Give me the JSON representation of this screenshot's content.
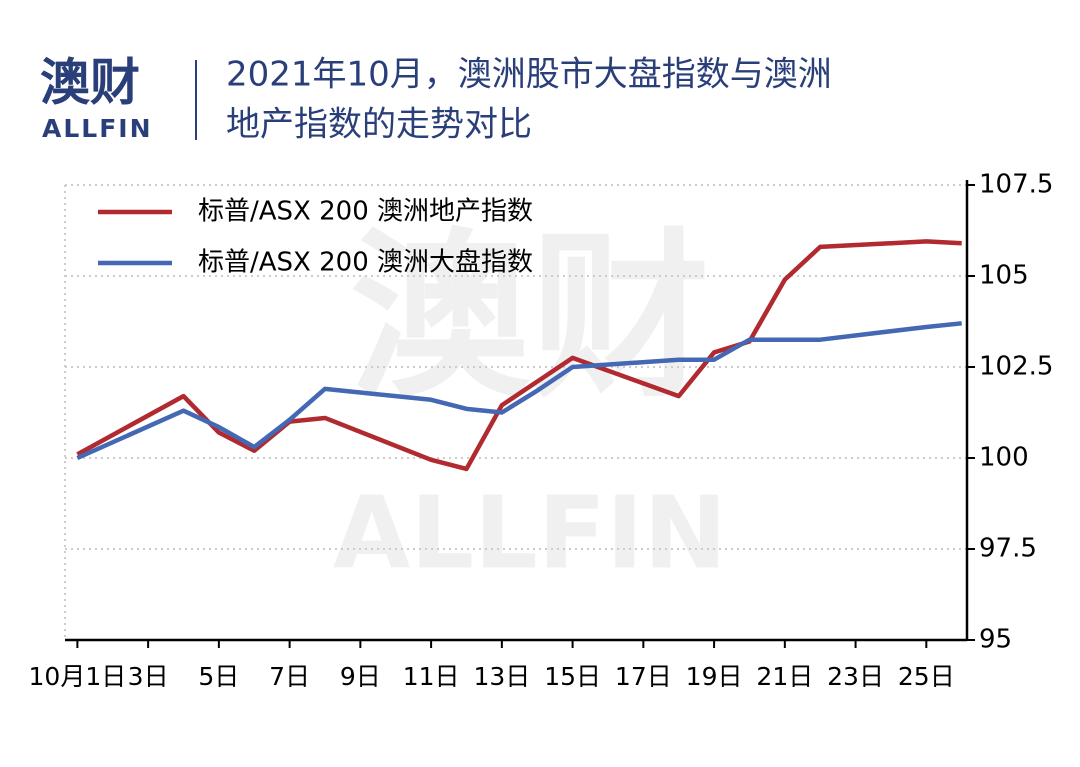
{
  "header": {
    "logo": "澳财",
    "logo_sub": "ALLFIN"
  },
  "chart_data": {
    "type": "line",
    "title": [
      "2021年10月，澳洲股市大盘指数与澳洲",
      "地产指数的走势对比"
    ],
    "watermark": [
      "澳财",
      "ALLFIN"
    ],
    "x": [
      1,
      4,
      5,
      6,
      7,
      8,
      11,
      12,
      13,
      14,
      15,
      18,
      19,
      20,
      21,
      22,
      25,
      26
    ],
    "xlim": [
      0.65,
      26.15
    ],
    "xticks": [
      {
        "value": 1,
        "label": "10月1日"
      },
      {
        "value": 3,
        "label": "3日"
      },
      {
        "value": 5,
        "label": "5日"
      },
      {
        "value": 7,
        "label": "7日"
      },
      {
        "value": 9,
        "label": "9日"
      },
      {
        "value": 11,
        "label": "11日"
      },
      {
        "value": 13,
        "label": "13日"
      },
      {
        "value": 15,
        "label": "15日"
      },
      {
        "value": 17,
        "label": "17日"
      },
      {
        "value": 19,
        "label": "19日"
      },
      {
        "value": 21,
        "label": "21日"
      },
      {
        "value": 23,
        "label": "23日"
      },
      {
        "value": 25,
        "label": "25日"
      }
    ],
    "ylim": [
      95,
      107.5
    ],
    "yticks": [
      95,
      97.5,
      100,
      102.5,
      105,
      107.5
    ],
    "grid": true,
    "legend": "top-left",
    "series": [
      {
        "name": "标普/ASX 200 澳洲地产指数",
        "color": "#b02a30",
        "values": [
          100.1,
          101.7,
          100.7,
          100.2,
          101.0,
          101.1,
          99.95,
          99.7,
          101.45,
          102.1,
          102.75,
          101.7,
          102.9,
          103.2,
          104.9,
          105.8,
          105.95,
          105.9
        ]
      },
      {
        "name": "标普/ASX 200 澳洲大盘指数",
        "color": "#4468b4",
        "values": [
          100.0,
          101.3,
          100.85,
          100.3,
          101.05,
          101.9,
          101.6,
          101.35,
          101.25,
          101.85,
          102.5,
          102.7,
          102.7,
          103.25,
          103.25,
          103.25,
          103.6,
          103.7
        ]
      }
    ]
  }
}
